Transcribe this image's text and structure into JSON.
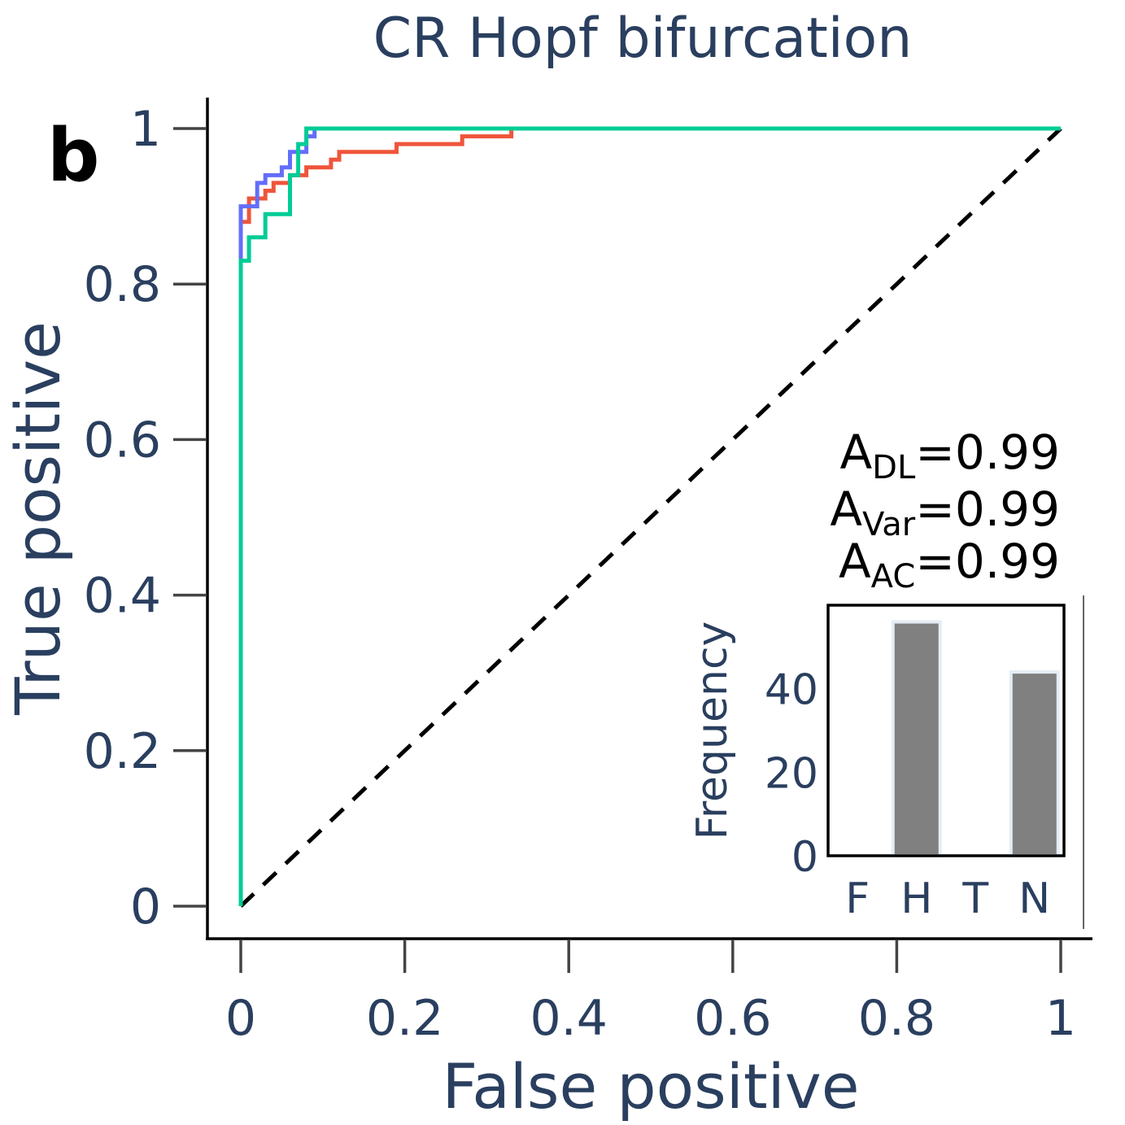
{
  "panel_label": "b",
  "chart_data": [
    {
      "type": "line",
      "title": "CR Hopf bifurcation",
      "xlabel": "False positive",
      "ylabel": "True positive",
      "xlim": [
        0,
        1
      ],
      "ylim": [
        0,
        1
      ],
      "x_ticks": [
        0,
        0.2,
        0.4,
        0.6,
        0.8,
        1
      ],
      "x_tick_labels": [
        "0",
        "0.2",
        "0.4",
        "0.6",
        "0.8",
        "1"
      ],
      "y_ticks": [
        0,
        0.2,
        0.4,
        0.6,
        0.8,
        1
      ],
      "y_tick_labels": [
        "0",
        "0.2",
        "0.4",
        "0.6",
        "0.8",
        "1"
      ],
      "grid": false,
      "colors": {
        "axis_text": "#2a3f5f",
        "diagonal": "#000000"
      },
      "series": [
        {
          "color": "#ef553b",
          "points": [
            [
              0,
              0
            ],
            [
              0,
              0.83
            ],
            [
              0,
              0.88
            ],
            [
              0.01,
              0.88
            ],
            [
              0.01,
              0.91
            ],
            [
              0.03,
              0.91
            ],
            [
              0.03,
              0.92
            ],
            [
              0.04,
              0.92
            ],
            [
              0.04,
              0.93
            ],
            [
              0.06,
              0.93
            ],
            [
              0.06,
              0.94
            ],
            [
              0.08,
              0.94
            ],
            [
              0.08,
              0.95
            ],
            [
              0.11,
              0.95
            ],
            [
              0.11,
              0.96
            ],
            [
              0.12,
              0.96
            ],
            [
              0.12,
              0.97
            ],
            [
              0.19,
              0.97
            ],
            [
              0.19,
              0.98
            ],
            [
              0.27,
              0.98
            ],
            [
              0.27,
              0.99
            ],
            [
              0.33,
              0.99
            ],
            [
              0.33,
              1
            ],
            [
              1,
              1
            ]
          ]
        },
        {
          "color": "#636efa",
          "points": [
            [
              0,
              0
            ],
            [
              0,
              0.9
            ],
            [
              0.02,
              0.9
            ],
            [
              0.02,
              0.93
            ],
            [
              0.03,
              0.93
            ],
            [
              0.03,
              0.94
            ],
            [
              0.05,
              0.94
            ],
            [
              0.05,
              0.95
            ],
            [
              0.06,
              0.95
            ],
            [
              0.06,
              0.97
            ],
            [
              0.08,
              0.97
            ],
            [
              0.08,
              0.99
            ],
            [
              0.09,
              0.99
            ],
            [
              0.09,
              1
            ],
            [
              1,
              1
            ]
          ]
        },
        {
          "color": "#00cc96",
          "points": [
            [
              0,
              0
            ],
            [
              0,
              0.83
            ],
            [
              0.01,
              0.83
            ],
            [
              0.01,
              0.86
            ],
            [
              0.03,
              0.86
            ],
            [
              0.03,
              0.89
            ],
            [
              0.06,
              0.89
            ],
            [
              0.06,
              0.94
            ],
            [
              0.07,
              0.94
            ],
            [
              0.07,
              0.98
            ],
            [
              0.08,
              0.98
            ],
            [
              0.08,
              1
            ],
            [
              1,
              1
            ]
          ]
        }
      ],
      "diagonal": {
        "points": [
          [
            0,
            0
          ],
          [
            1,
            1
          ]
        ],
        "style": "dashed"
      },
      "annotations": [
        {
          "main": "A",
          "sub": "DL",
          "rest": "=0.99"
        },
        {
          "main": "A",
          "sub": "Var",
          "rest": "=0.99"
        },
        {
          "main": "A",
          "sub": "AC",
          "rest": "=0.99"
        }
      ]
    },
    {
      "type": "bar",
      "ylabel": "Frequency",
      "categories": [
        "F",
        "H",
        "T",
        "N"
      ],
      "values": [
        0,
        56,
        0,
        44
      ],
      "ylim": [
        0,
        60
      ],
      "y_ticks": [
        0,
        20,
        40
      ],
      "y_tick_labels": [
        "0",
        "20",
        "40"
      ],
      "colors": {
        "bar": "#808080",
        "bar_edge": "#e5ecf6"
      }
    }
  ]
}
